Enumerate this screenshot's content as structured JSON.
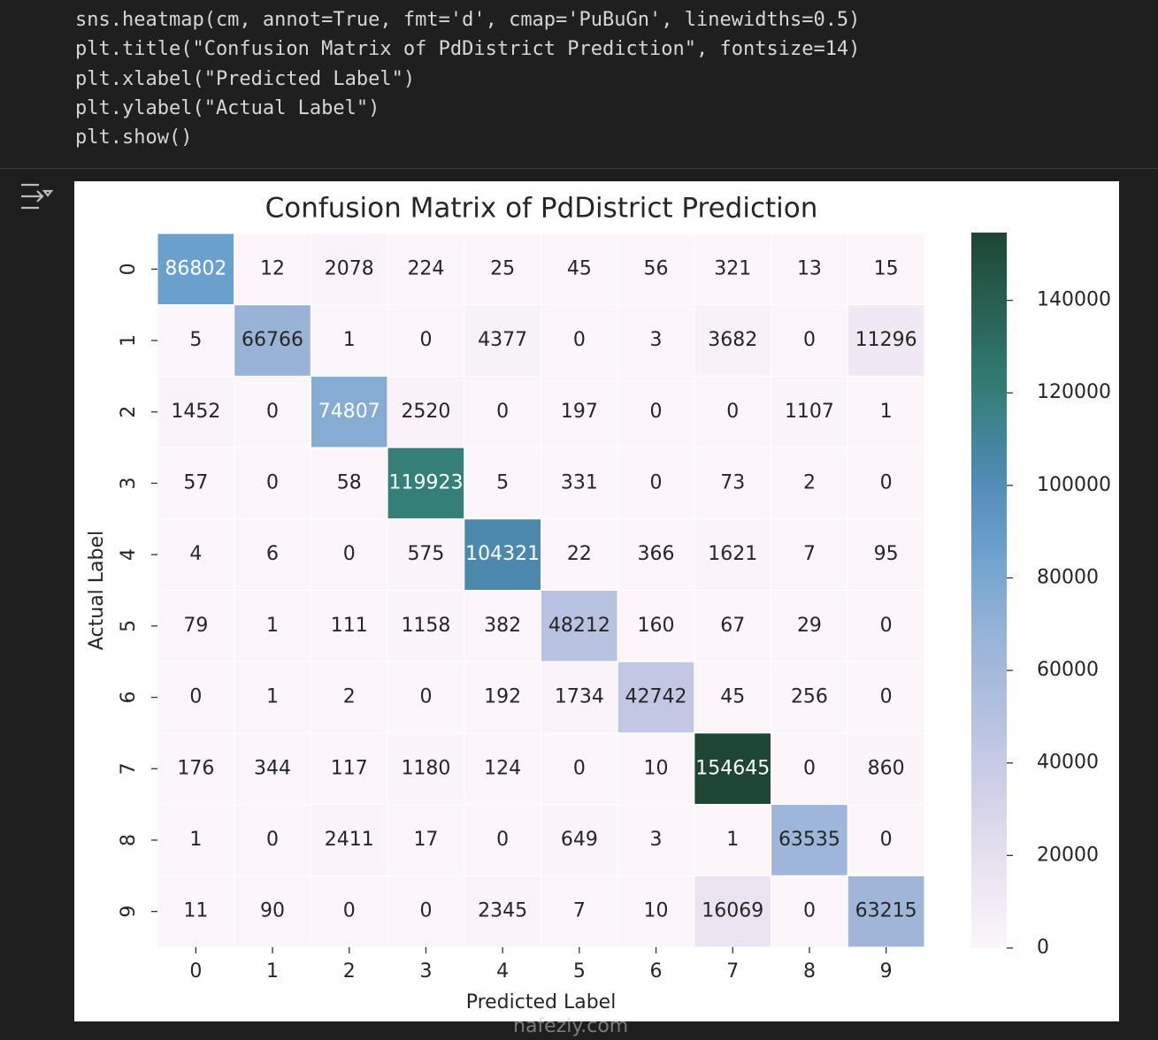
{
  "code": {
    "lines": [
      "sns.heatmap(cm, annot=True, fmt='d', cmap='PuBuGn', linewidths=0.5)",
      "plt.title(\"Confusion Matrix of PdDistrict Prediction\", fontsize=14)",
      "plt.xlabel(\"Predicted Label\")",
      "plt.ylabel(\"Actual Label\")",
      "plt.show()"
    ]
  },
  "watermark": "nafezly.com",
  "chart_data": {
    "type": "heatmap",
    "title": "Confusion Matrix of PdDistrict Prediction",
    "xlabel": "Predicted Label",
    "ylabel": "Actual Label",
    "x": [
      "0",
      "1",
      "2",
      "3",
      "4",
      "5",
      "6",
      "7",
      "8",
      "9"
    ],
    "y": [
      "0",
      "1",
      "2",
      "3",
      "4",
      "5",
      "6",
      "7",
      "8",
      "9"
    ],
    "values": [
      [
        86802,
        12,
        2078,
        224,
        25,
        45,
        56,
        321,
        13,
        15
      ],
      [
        5,
        66766,
        1,
        0,
        4377,
        0,
        3,
        3682,
        0,
        11296
      ],
      [
        1452,
        0,
        74807,
        2520,
        0,
        197,
        0,
        0,
        1107,
        1
      ],
      [
        57,
        0,
        58,
        119923,
        5,
        331,
        0,
        73,
        2,
        0
      ],
      [
        4,
        6,
        0,
        575,
        104321,
        22,
        366,
        1621,
        7,
        95
      ],
      [
        79,
        1,
        111,
        1158,
        382,
        48212,
        160,
        67,
        29,
        0
      ],
      [
        0,
        1,
        2,
        0,
        192,
        1734,
        42742,
        45,
        256,
        0
      ],
      [
        176,
        344,
        117,
        1180,
        124,
        0,
        10,
        154645,
        0,
        860
      ],
      [
        1,
        0,
        2411,
        17,
        0,
        649,
        3,
        1,
        63535,
        0
      ],
      [
        11,
        90,
        0,
        0,
        2345,
        7,
        10,
        16069,
        0,
        63215
      ]
    ],
    "colormap": "PuBuGn",
    "clim": [
      0,
      154645
    ],
    "cticks": [
      0,
      20000,
      40000,
      60000,
      80000,
      100000,
      120000,
      140000
    ]
  }
}
